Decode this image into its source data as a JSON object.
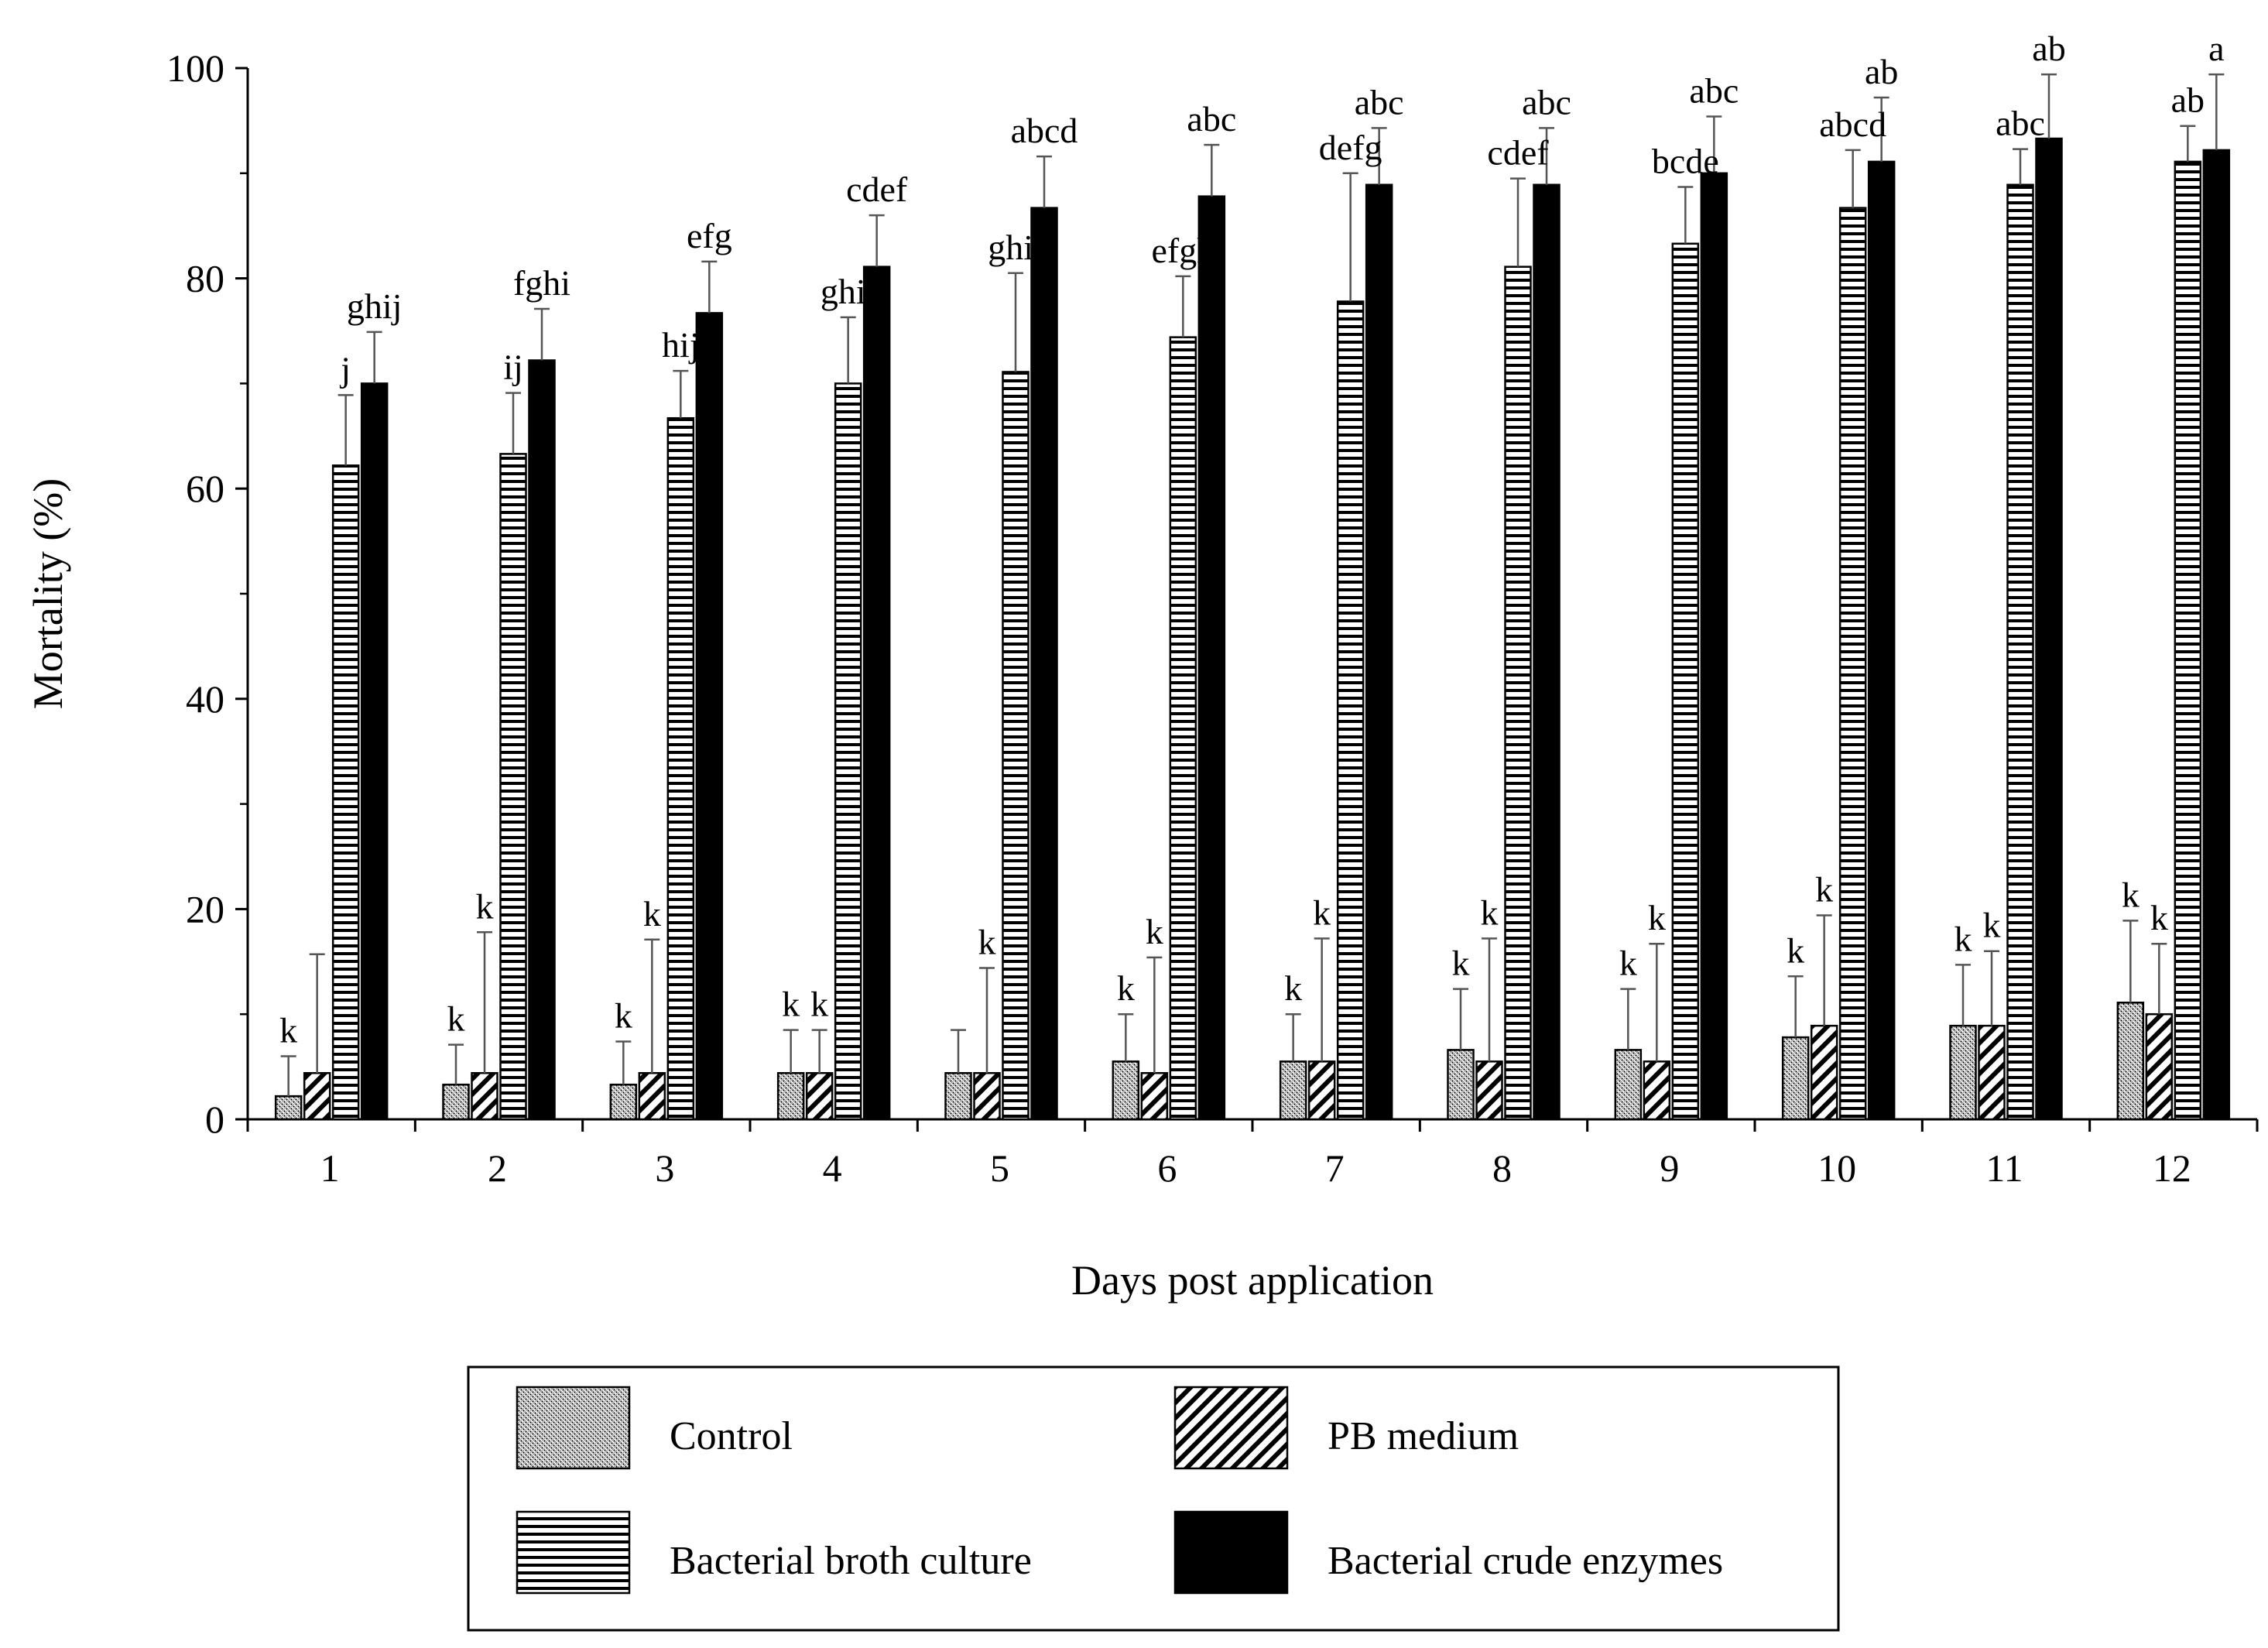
{
  "chart_data": {
    "type": "bar",
    "title": "",
    "xlabel": "Days post application",
    "ylabel": "Mortality (%)",
    "ylim": [
      0,
      100
    ],
    "yticks": [
      0,
      20,
      40,
      60,
      80,
      100
    ],
    "grid": false,
    "legend_position": "bottom",
    "categories": [
      "1",
      "2",
      "3",
      "4",
      "5",
      "6",
      "7",
      "8",
      "9",
      "10",
      "11",
      "12"
    ],
    "series": [
      {
        "name": "Control",
        "pattern": "dotted",
        "values": [
          2.2,
          3.3,
          3.3,
          4.4,
          4.4,
          5.5,
          5.5,
          6.6,
          6.6,
          7.8,
          8.9,
          11.1
        ],
        "error": [
          3.8,
          3.8,
          4.1,
          4.1,
          4.1,
          4.5,
          4.5,
          5.8,
          5.8,
          5.8,
          5.8,
          7.8
        ],
        "labels": [
          "k",
          "k",
          "k",
          "k",
          "",
          "k",
          "k",
          "k",
          "k",
          "k",
          "k",
          "k"
        ]
      },
      {
        "name": "PB medium",
        "pattern": "diagonal",
        "values": [
          4.4,
          4.4,
          4.4,
          4.4,
          4.4,
          4.4,
          5.5,
          5.5,
          5.5,
          8.9,
          8.9,
          10.0
        ],
        "error": [
          11.3,
          13.4,
          12.7,
          4.1,
          10.0,
          11.0,
          11.7,
          11.7,
          11.2,
          10.5,
          7.1,
          6.7
        ],
        "labels": [
          "",
          "k",
          "k",
          "k",
          "k",
          "k",
          "k",
          "k",
          "k",
          "k",
          "k",
          "k"
        ]
      },
      {
        "name": "Bacterial broth culture",
        "pattern": "horizontal",
        "values": [
          62.2,
          63.3,
          66.7,
          70.0,
          71.1,
          74.4,
          77.8,
          81.1,
          83.3,
          86.7,
          88.9,
          91.1
        ],
        "error": [
          6.7,
          5.8,
          4.5,
          6.3,
          9.4,
          5.8,
          12.2,
          8.4,
          5.4,
          5.5,
          3.4,
          3.4
        ],
        "labels": [
          "j",
          "ij",
          "hij",
          "ghij",
          "ghij",
          "efgh",
          "defg",
          "cdef",
          "bcde",
          "abcd",
          "abc",
          "ab"
        ]
      },
      {
        "name": "Bacterial crude enzymes",
        "pattern": "solid",
        "values": [
          70.0,
          72.2,
          76.7,
          81.1,
          86.7,
          87.8,
          88.9,
          88.9,
          90.0,
          91.1,
          93.3,
          92.2
        ],
        "error": [
          4.9,
          4.9,
          4.9,
          4.9,
          4.9,
          4.9,
          5.4,
          5.4,
          5.4,
          6.1,
          6.1,
          7.2
        ],
        "labels": [
          "ghij",
          "fghi",
          "efg",
          "cdef",
          "abcd",
          "abc",
          "abc",
          "abc",
          "abc",
          "ab",
          "ab",
          "a"
        ]
      }
    ]
  }
}
